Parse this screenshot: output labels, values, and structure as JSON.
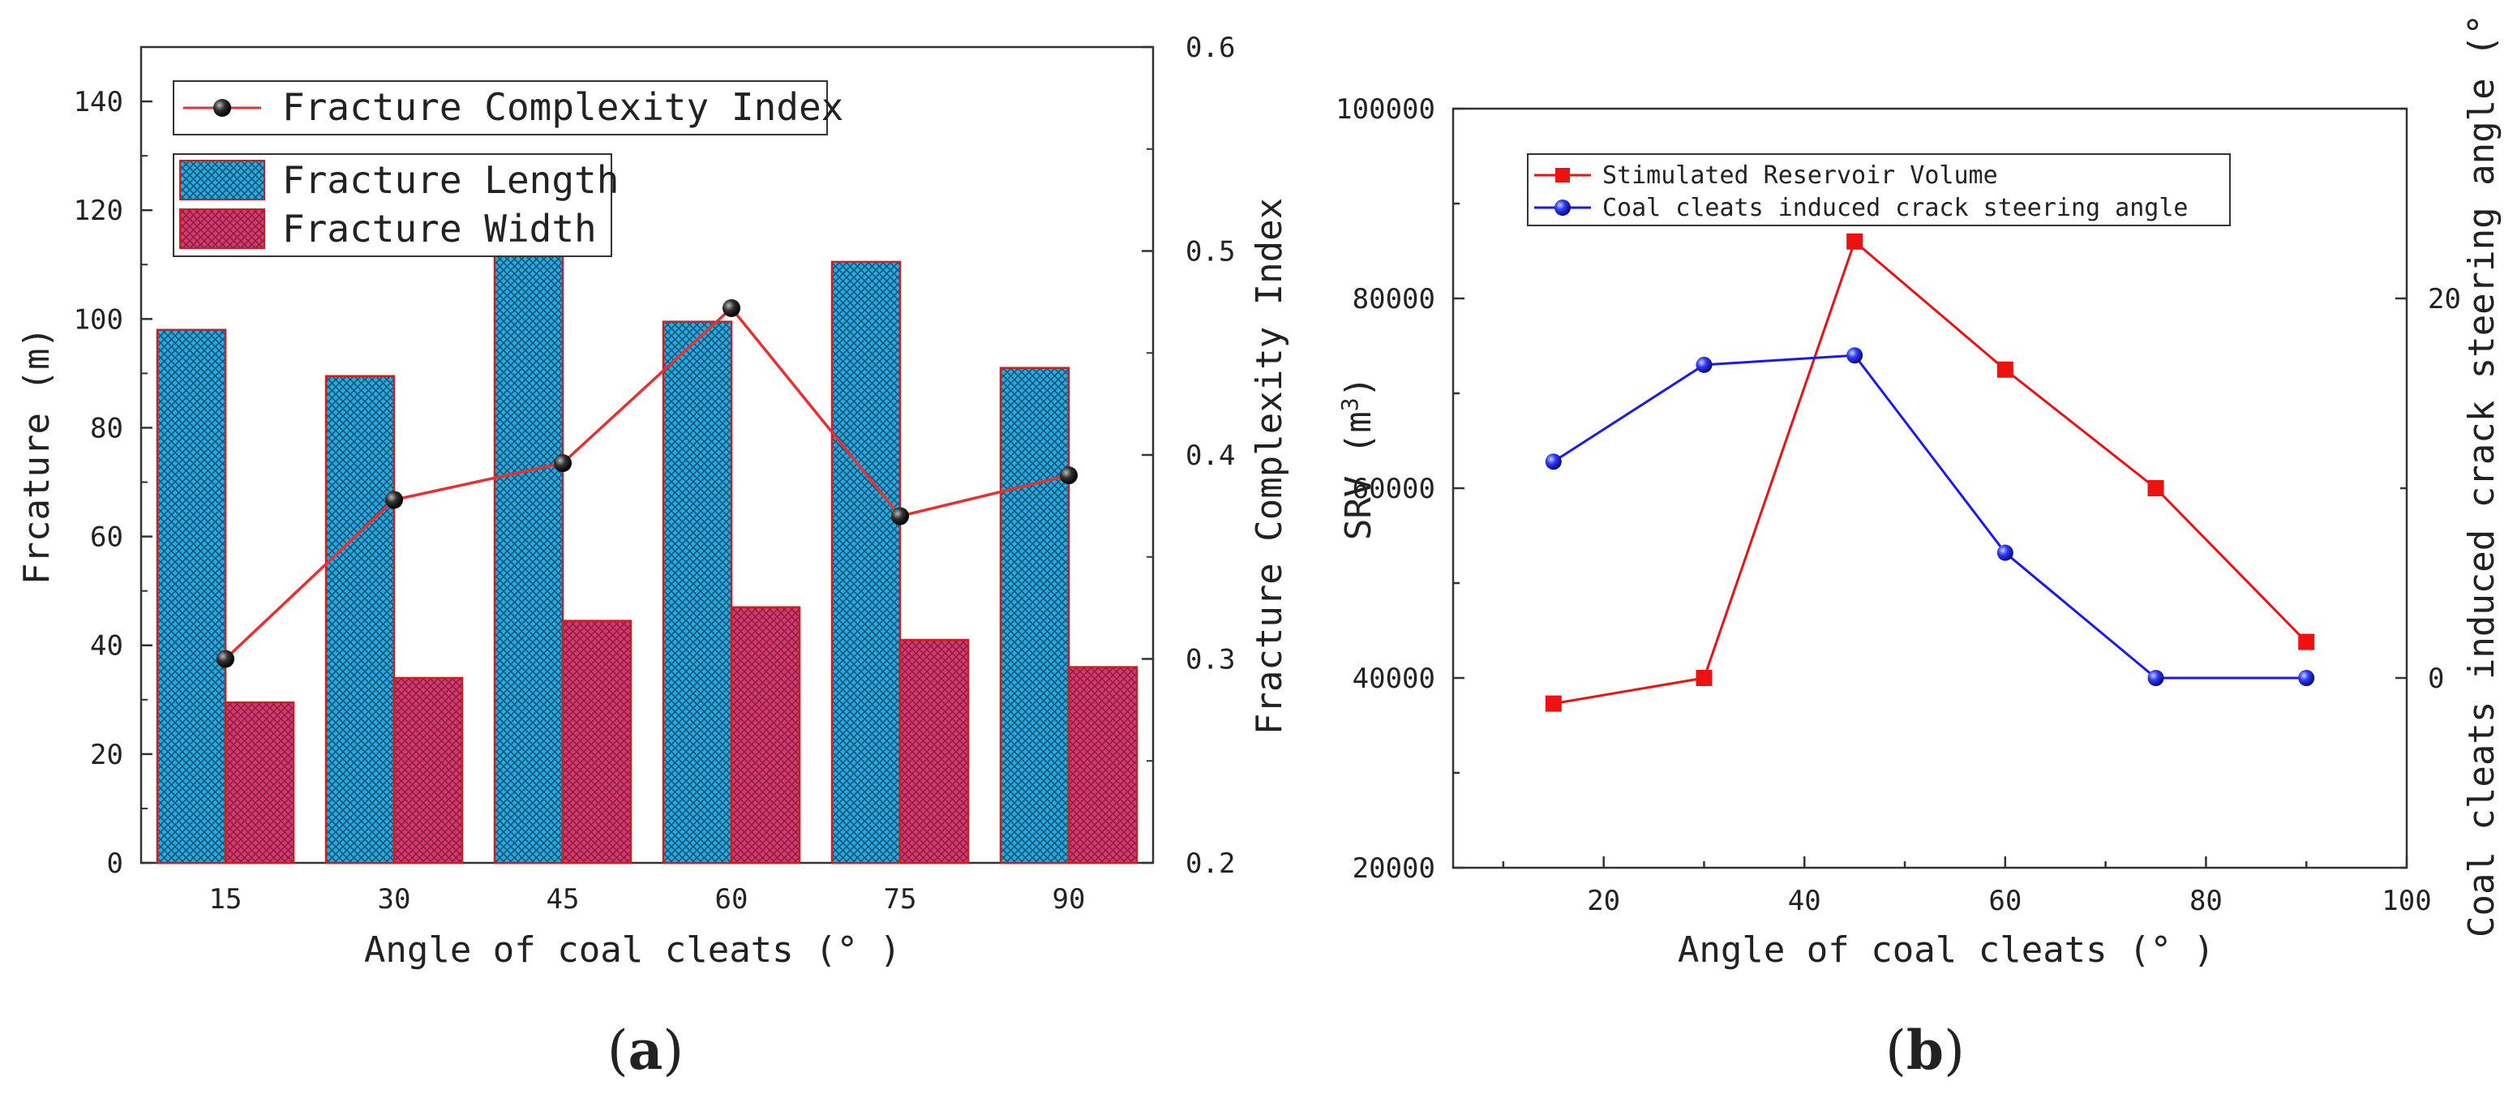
{
  "captions": {
    "a_open": "(",
    "a_letter": "a",
    "a_close": ")",
    "b_open": "(",
    "b_letter": "b",
    "b_close": ")"
  },
  "chart_data": [
    {
      "type": "bar",
      "panel": "(a)",
      "categories": [
        "15",
        "30",
        "45",
        "60",
        "75",
        "90"
      ],
      "series": [
        {
          "name": "Fracture Length",
          "kind": "bar",
          "axis": "left",
          "values": [
            98,
            89.5,
            114,
            99.5,
            110.5,
            91
          ],
          "color": "#1fa3d8"
        },
        {
          "name": "Fracture Width",
          "kind": "bar",
          "axis": "left",
          "values": [
            29.5,
            34,
            44.5,
            47,
            41,
            36
          ],
          "color": "#d0386a"
        },
        {
          "name": "Fracture Complexity Index",
          "kind": "line",
          "axis": "right",
          "values": [
            0.3,
            0.378,
            0.396,
            0.472,
            0.37,
            0.39
          ],
          "color": "#e83030"
        }
      ],
      "xlabel": "Angle of coal cleats (° )",
      "ylabel": "Frcature (m)",
      "y2label": "Fracture Complexity Index",
      "ylim": [
        0,
        150
      ],
      "y2lim": [
        0.2,
        0.6
      ],
      "yticks": [
        "0",
        "20",
        "40",
        "60",
        "80",
        "100",
        "120",
        "140"
      ],
      "y2ticks": [
        "0.2",
        "0.3",
        "0.4",
        "0.5",
        "0.6"
      ],
      "legend_line": "Fracture Complexity Index",
      "legend_bars": [
        "Fracture Length",
        "Fracture Width"
      ],
      "legend_position": "top-left"
    },
    {
      "type": "line",
      "panel": "(b)",
      "series": [
        {
          "name": "Stimulated Reservoir Volume",
          "axis": "left",
          "color": "#ee1111",
          "x": [
            15,
            30,
            45,
            60,
            75,
            90
          ],
          "y": [
            37300,
            40000,
            86000,
            72500,
            60000,
            43800
          ]
        },
        {
          "name": "Coal cleats induced crack steering angle",
          "axis": "right",
          "color": "#1a1aee",
          "x": [
            15,
            30,
            45,
            60,
            75,
            90
          ],
          "y": [
            11.4,
            16.5,
            17,
            6.6,
            0,
            0
          ]
        }
      ],
      "xlabel": "Angle of coal cleats (° )",
      "ylabel": "SRV (m",
      "ylabel_sup": "3",
      "ylabel_close": ")",
      "y2label": "Coal cleats induced crack steering angle (° )",
      "xlim": [
        5,
        100
      ],
      "ylim": [
        20000,
        100000
      ],
      "y2lim": [
        -10,
        30
      ],
      "xticks": [
        "20",
        "40",
        "60",
        "80",
        "100"
      ],
      "yticks": [
        "20000",
        "40000",
        "60000",
        "80000",
        "100000"
      ],
      "y2ticks": [
        "0",
        "20"
      ],
      "legend_position": "top-left"
    }
  ]
}
